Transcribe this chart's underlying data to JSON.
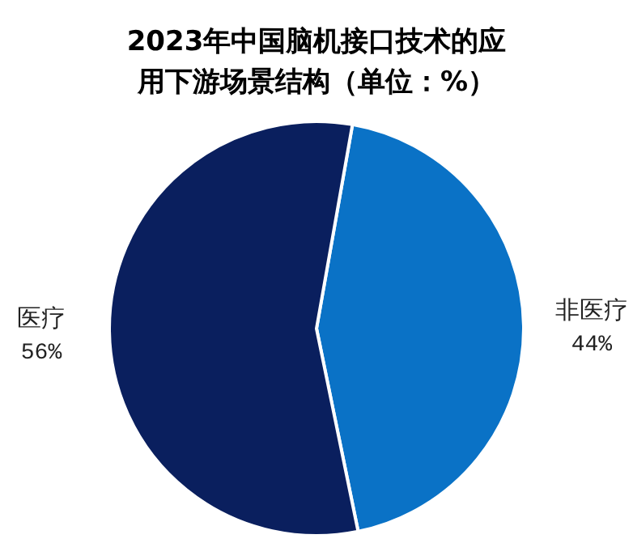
{
  "chart_data": {
    "type": "pie",
    "title": "2023年中国脑机接口技术的应用下游场景结构（单位：%）",
    "categories": [
      "非医疗",
      "医疗"
    ],
    "values": [
      44,
      56
    ],
    "colors": [
      "#0a72c6",
      "#0a1f5e"
    ],
    "value_labels": [
      "44%",
      "56%"
    ],
    "legend": false
  }
}
